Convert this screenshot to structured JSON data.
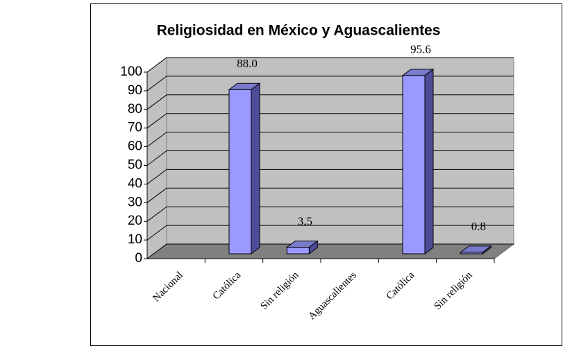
{
  "chart_data": {
    "type": "bar3d",
    "title": "Religiosidad en México y Aguascalientes",
    "categories": [
      "Nacional",
      "Católica",
      "Sin religión",
      "Aguascalientes",
      "Católica",
      "Sin religión"
    ],
    "values": [
      null,
      88.0,
      3.5,
      null,
      95.6,
      0.8
    ],
    "value_labels": [
      null,
      "88.0",
      "3.5",
      null,
      "95.6",
      "0.8"
    ],
    "color": "#9999ff",
    "ylim": [
      0,
      100
    ],
    "yticks": [
      0,
      10,
      20,
      30,
      40,
      50,
      60,
      70,
      80,
      90,
      100
    ],
    "grid": true
  }
}
